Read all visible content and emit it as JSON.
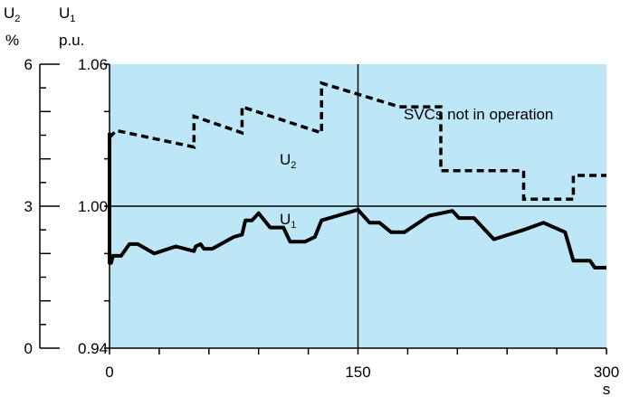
{
  "chart_data": {
    "type": "line",
    "annotation": "SVCs not in operation",
    "x_axis": {
      "unit": "s",
      "ticks": [
        0,
        150,
        300
      ],
      "range": [
        0,
        300
      ]
    },
    "y_axis_left": {
      "symbol": "U",
      "subscript": "2",
      "unit": "%",
      "ticks": [
        0,
        3,
        6
      ],
      "range": [
        0,
        6
      ]
    },
    "y_axis_right": {
      "symbol": "U",
      "subscript": "1",
      "unit": "p.u.",
      "ticks": [
        "0.94",
        "1.00",
        "1.06"
      ],
      "range": [
        0.94,
        1.06
      ]
    },
    "grid": {
      "vertical_at": [
        150
      ],
      "horizontal_at": [
        1.0
      ]
    },
    "series": [
      {
        "name": "U1",
        "label_symbol": "U",
        "label_subscript": "1",
        "style": "solid",
        "axis": "right",
        "points": [
          [
            0,
            1.031
          ],
          [
            0,
            0.976
          ],
          [
            1,
            0.976
          ],
          [
            2,
            0.979
          ],
          [
            7,
            0.979
          ],
          [
            12,
            0.984
          ],
          [
            17,
            0.984
          ],
          [
            27,
            0.98
          ],
          [
            40,
            0.983
          ],
          [
            51,
            0.981
          ],
          [
            52,
            0.983
          ],
          [
            55,
            0.984
          ],
          [
            57,
            0.982
          ],
          [
            62,
            0.982
          ],
          [
            75,
            0.987
          ],
          [
            80,
            0.988
          ],
          [
            82,
            0.994
          ],
          [
            86,
            0.994
          ],
          [
            90,
            0.997
          ],
          [
            97,
            0.991
          ],
          [
            105,
            0.991
          ],
          [
            109,
            0.985
          ],
          [
            118,
            0.985
          ],
          [
            124,
            0.987
          ],
          [
            128,
            0.994
          ],
          [
            150,
            0.9985
          ],
          [
            157,
            0.993
          ],
          [
            163,
            0.993
          ],
          [
            170,
            0.989
          ],
          [
            178,
            0.989
          ],
          [
            193,
            0.996
          ],
          [
            207,
            0.998
          ],
          [
            211,
            0.995
          ],
          [
            220,
            0.995
          ],
          [
            232,
            0.986
          ],
          [
            250,
            0.99
          ],
          [
            262,
            0.993
          ],
          [
            275,
            0.989
          ],
          [
            280,
            0.977
          ],
          [
            290,
            0.977
          ],
          [
            293,
            0.974
          ],
          [
            300,
            0.974
          ]
        ]
      },
      {
        "name": "U2",
        "label_symbol": "U",
        "label_subscript": "2",
        "style": "dashed",
        "axis": "left",
        "points": [
          [
            0,
            4.45
          ],
          [
            4,
            4.6
          ],
          [
            51,
            4.25
          ],
          [
            51,
            4.9
          ],
          [
            80,
            4.55
          ],
          [
            80,
            5.1
          ],
          [
            128,
            4.55
          ],
          [
            128,
            5.6
          ],
          [
            175,
            5.1
          ],
          [
            200,
            5.1
          ],
          [
            200,
            3.75
          ],
          [
            250,
            3.75
          ],
          [
            250,
            3.15
          ],
          [
            280,
            3.15
          ],
          [
            280,
            3.65
          ],
          [
            300,
            3.65
          ]
        ]
      }
    ]
  }
}
